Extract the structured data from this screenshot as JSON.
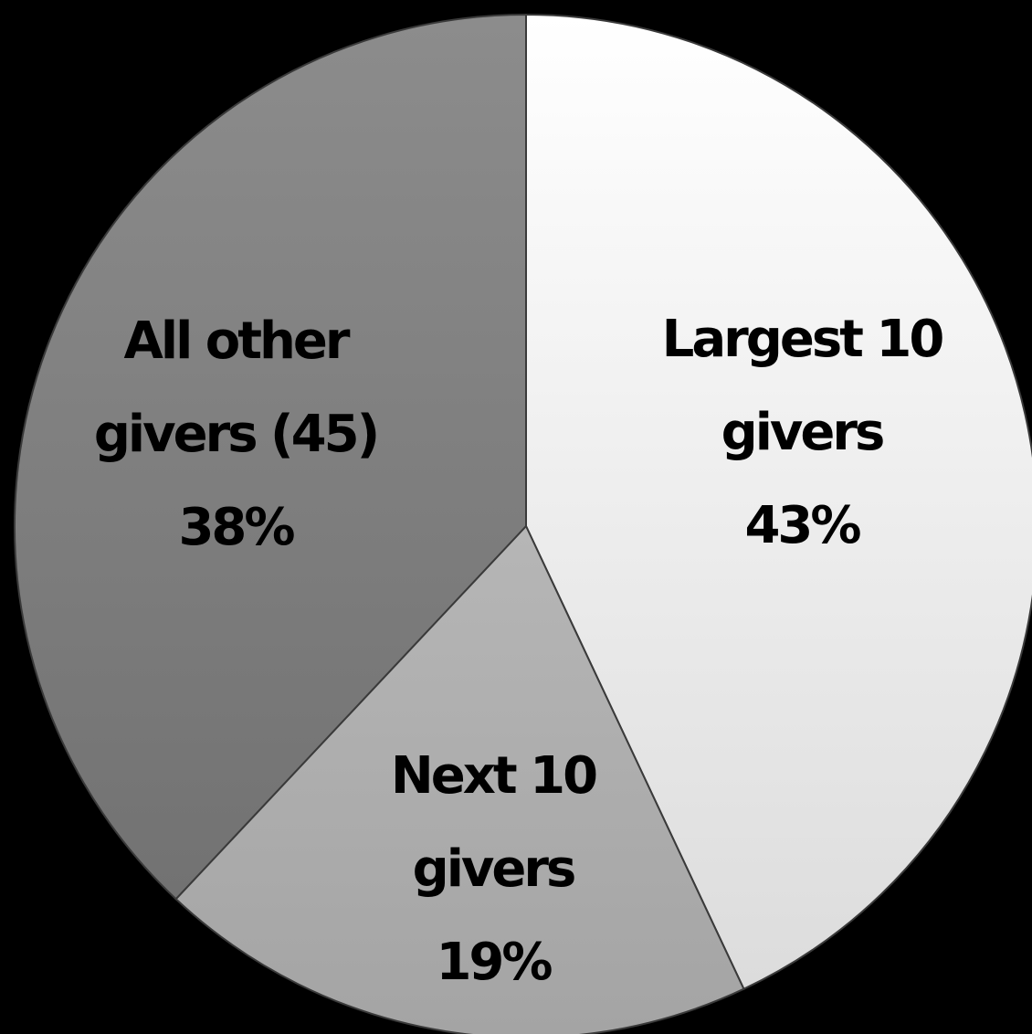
{
  "chart_data": {
    "type": "pie",
    "start_angle": "12 o'clock",
    "direction": "clockwise",
    "slices": [
      {
        "label_lines": [
          "Largest 10",
          "givers",
          "43%"
        ],
        "value": 43,
        "fill_top": "#ffffff",
        "fill_bottom": "#dcdcdc"
      },
      {
        "label_lines": [
          "Next 10",
          "givers",
          "19%"
        ],
        "value": 19,
        "fill_top": "#b6b6b6",
        "fill_bottom": "#a4a4a4"
      },
      {
        "label_lines": [
          "All other",
          "givers (45)",
          "38%"
        ],
        "value": 38,
        "fill_top": "#8c8c8c",
        "fill_bottom": "#727272"
      }
    ],
    "background": "#000000"
  }
}
